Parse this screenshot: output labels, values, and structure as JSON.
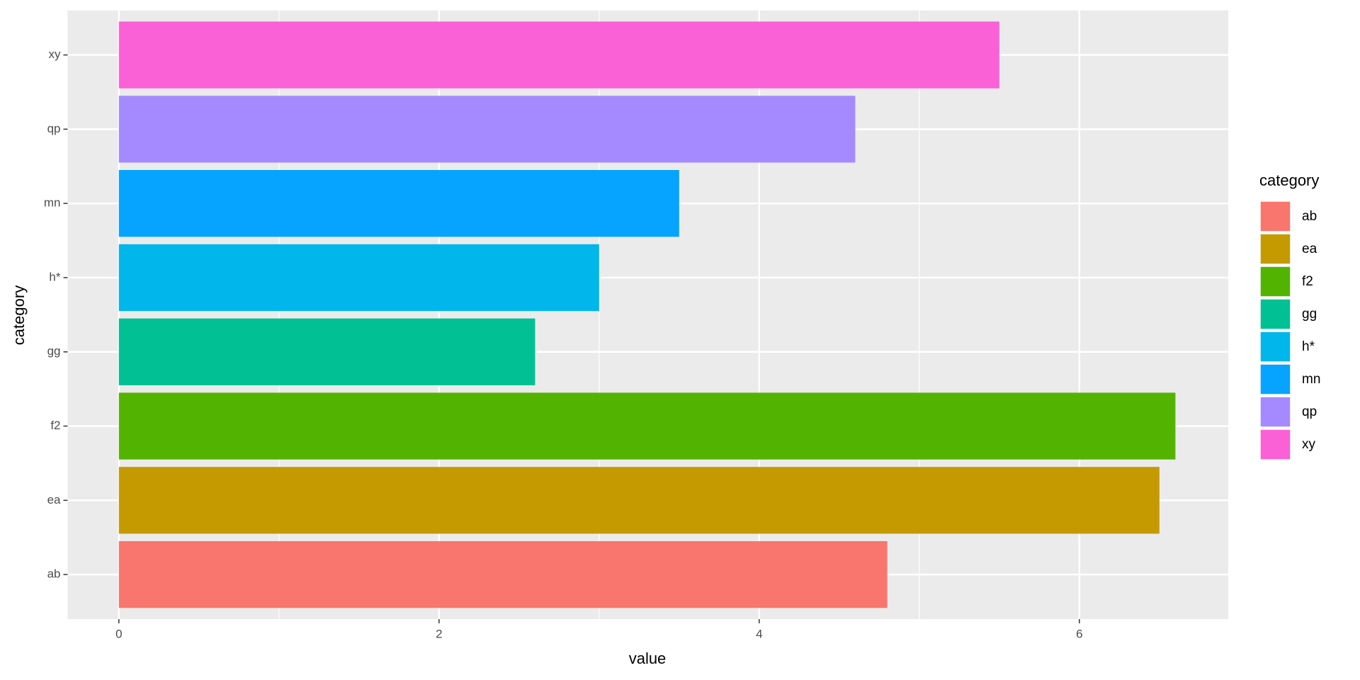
{
  "chart_data": {
    "type": "bar",
    "orientation": "horizontal",
    "categories": [
      "ab",
      "ea",
      "f2",
      "gg",
      "h*",
      "mn",
      "qp",
      "xy"
    ],
    "values": [
      4.8,
      6.5,
      6.6,
      2.6,
      3.0,
      3.5,
      4.6,
      5.5
    ],
    "colors": [
      "#F8766D",
      "#C49A00",
      "#53B400",
      "#00C094",
      "#00B6EB",
      "#06A4FF",
      "#A58AFF",
      "#FB61D7"
    ],
    "x_label": "value",
    "y_label": "category",
    "legend_title": "category",
    "xlim": [
      -0.32,
      6.93
    ],
    "xticks": [
      0,
      2,
      4,
      6
    ],
    "xminorticks": [
      1,
      3,
      5
    ],
    "grid": true
  }
}
